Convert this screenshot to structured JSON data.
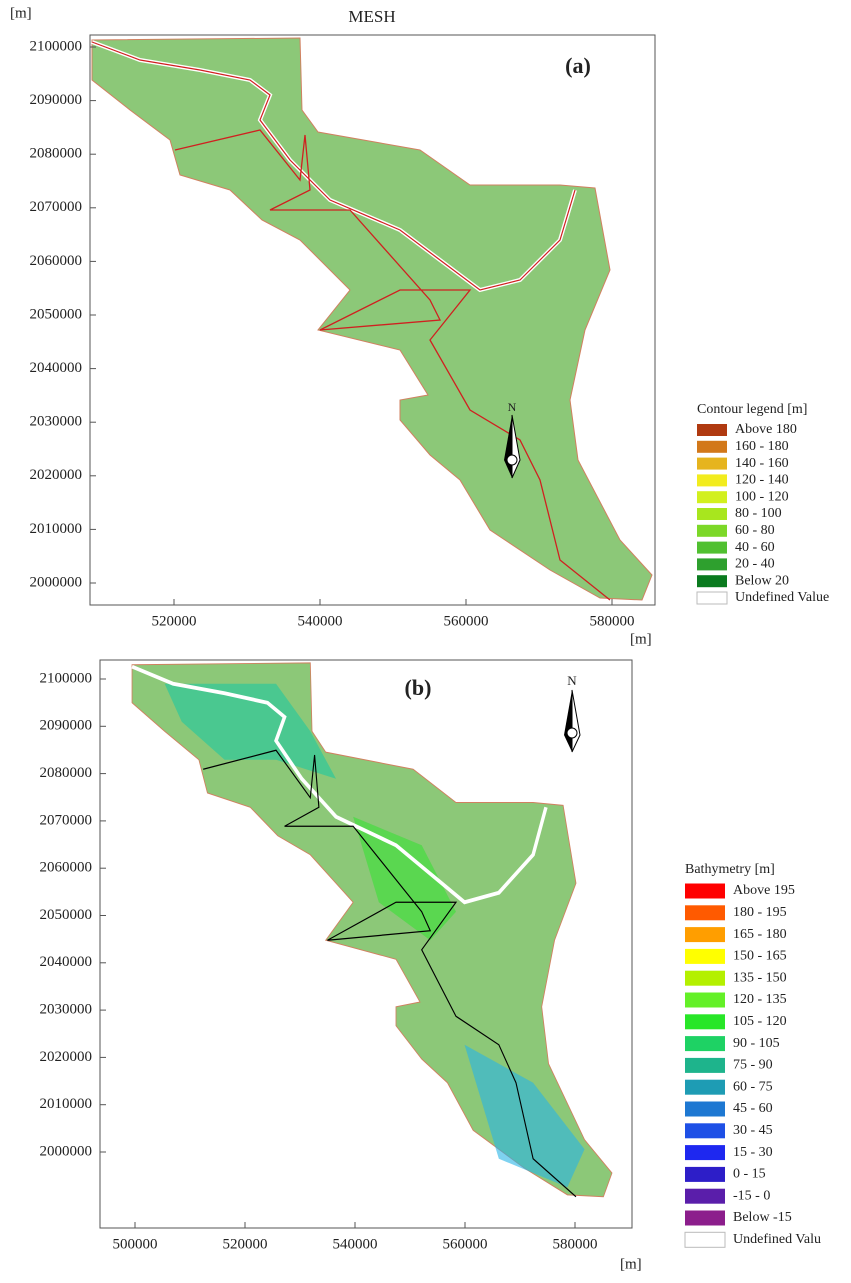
{
  "panel_a": {
    "unit_top": "[m]",
    "title": "MESH",
    "label": "(a)",
    "yticks": [
      2100000,
      2090000,
      2080000,
      2070000,
      2060000,
      2050000,
      2040000,
      2030000,
      2020000,
      2010000,
      2000000
    ],
    "xticks": [
      520000,
      540000,
      560000,
      580000
    ],
    "x_unit": "[m]",
    "north": "N",
    "legend": {
      "title": "Contour legend [m]",
      "items": [
        {
          "label": "Above 180",
          "color": "#b03a10"
        },
        {
          "label": "160 - 180",
          "color": "#d2781a"
        },
        {
          "label": "140 - 160",
          "color": "#e6b41e"
        },
        {
          "label": "120 - 140",
          "color": "#f2ec1e"
        },
        {
          "label": "100 - 120",
          "color": "#d2f01e"
        },
        {
          "label": "80 - 100",
          "color": "#a8e61e"
        },
        {
          "label": "60 -  80",
          "color": "#7cd828"
        },
        {
          "label": "40 -  60",
          "color": "#50c030"
        },
        {
          "label": "20 -  40",
          "color": "#2ea02e"
        },
        {
          "label": "Below  20",
          "color": "#0a7a1e"
        },
        {
          "label": "Undefined Value",
          "color": "#ffffff"
        }
      ]
    }
  },
  "panel_b": {
    "label": "(b)",
    "yticks": [
      2100000,
      2090000,
      2080000,
      2070000,
      2060000,
      2050000,
      2040000,
      2030000,
      2020000,
      2010000,
      2000000
    ],
    "xticks": [
      500000,
      520000,
      540000,
      560000,
      580000
    ],
    "x_unit": "[m]",
    "north": "N",
    "legend": {
      "title": "Bathymetry [m]",
      "items": [
        {
          "label": "Above 195",
          "color": "#ff0000"
        },
        {
          "label": "180 - 195",
          "color": "#ff5a00"
        },
        {
          "label": "165 - 180",
          "color": "#ff9e00"
        },
        {
          "label": "150 - 165",
          "color": "#ffff00"
        },
        {
          "label": "135 - 150",
          "color": "#b4f000"
        },
        {
          "label": "120 - 135",
          "color": "#64f028"
        },
        {
          "label": "105 - 120",
          "color": "#28e628"
        },
        {
          "label": "90 - 105",
          "color": "#1ed264"
        },
        {
          "label": "75 -  90",
          "color": "#1eb48c"
        },
        {
          "label": "60 -  75",
          "color": "#1e9cb4"
        },
        {
          "label": "45 -  60",
          "color": "#1e78d2"
        },
        {
          "label": "30 -  45",
          "color": "#1e50e6"
        },
        {
          "label": "15 -  30",
          "color": "#1e28f0"
        },
        {
          "label": "0 -  15",
          "color": "#2d1ec8"
        },
        {
          "label": "-15 -   0",
          "color": "#5a1eaa"
        },
        {
          "label": "Below -15",
          "color": "#8c1e8c"
        },
        {
          "label": "Undefined Valu",
          "color": "#ffffff"
        }
      ]
    }
  }
}
